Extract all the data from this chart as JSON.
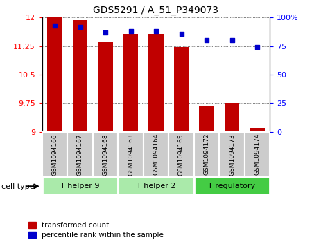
{
  "title": "GDS5291 / A_51_P349073",
  "samples": [
    "GSM1094166",
    "GSM1094167",
    "GSM1094168",
    "GSM1094163",
    "GSM1094164",
    "GSM1094165",
    "GSM1094172",
    "GSM1094173",
    "GSM1094174"
  ],
  "transformed_count": [
    12.0,
    11.93,
    11.35,
    11.57,
    11.57,
    11.22,
    9.68,
    9.75,
    9.1
  ],
  "percentile_rank": [
    93,
    92,
    87,
    88,
    88,
    86,
    80,
    80,
    74
  ],
  "ylim_left": [
    9,
    12
  ],
  "ylim_right": [
    0,
    100
  ],
  "yticks_left": [
    9,
    9.75,
    10.5,
    11.25,
    12
  ],
  "yticks_right": [
    0,
    25,
    50,
    75,
    100
  ],
  "bar_color": "#C00000",
  "dot_color": "#0000CC",
  "cell_types": [
    {
      "label": "T helper 9",
      "indices": [
        0,
        1,
        2
      ],
      "color": "#AAEAAA"
    },
    {
      "label": "T helper 2",
      "indices": [
        3,
        4,
        5
      ],
      "color": "#AAEAAA"
    },
    {
      "label": "T regulatory",
      "indices": [
        6,
        7,
        8
      ],
      "color": "#44CC44"
    }
  ],
  "cell_type_label": "cell type",
  "legend_bar": "transformed count",
  "legend_dot": "percentile rank within the sample",
  "background_plot": "#FFFFFF",
  "background_label": "#CCCCCC"
}
